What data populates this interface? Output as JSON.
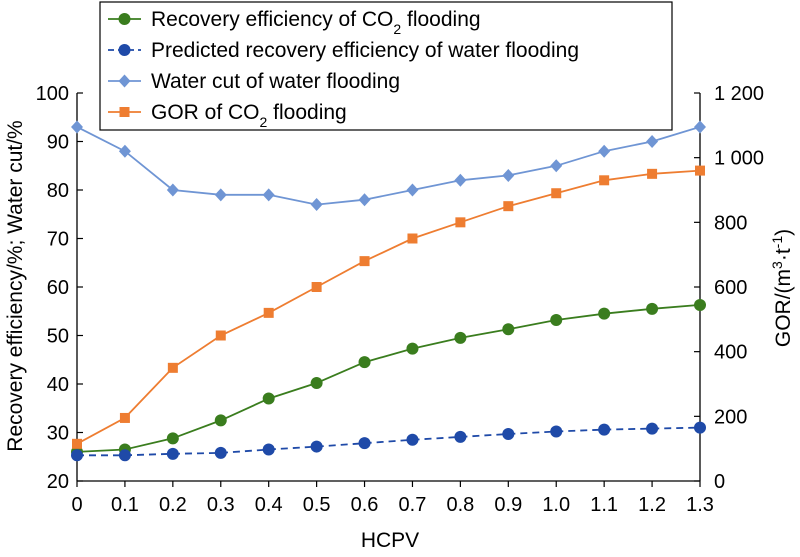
{
  "chart_data": {
    "type": "line",
    "x": [
      0,
      0.1,
      0.2,
      0.3,
      0.4,
      0.5,
      0.6,
      0.7,
      0.8,
      0.9,
      1.0,
      1.1,
      1.2,
      1.3
    ],
    "x_tick_labels": [
      "0",
      "0.1",
      "0.2",
      "0.3",
      "0.4",
      "0.5",
      "0.6",
      "0.7",
      "0.8",
      "0.9",
      "1.0",
      "1.1",
      "1.2",
      "1.3"
    ],
    "xlabel": "HCPV",
    "ylabel_left": "Recovery efficiency/%; Water cut/%",
    "ylabel_right": "GOR/(m3·t-1)",
    "ylim_left": [
      20,
      100
    ],
    "ylim_right": [
      0,
      1200
    ],
    "y_ticks_left": [
      "20",
      "30",
      "40",
      "50",
      "60",
      "70",
      "80",
      "90",
      "100"
    ],
    "y_ticks_right": [
      "0",
      "200",
      "400",
      "600",
      "800",
      "1 000",
      "1 200"
    ],
    "grid": false,
    "legend_position": "top-center",
    "series": [
      {
        "name": "Recovery efficiency of CO2 flooding",
        "axis": "left",
        "color": "#3a7d1e",
        "marker": "circle",
        "dash": "solid",
        "values": [
          26.0,
          26.5,
          28.8,
          32.5,
          37.0,
          40.2,
          44.5,
          47.3,
          49.5,
          51.3,
          53.2,
          54.5,
          55.5,
          56.3
        ]
      },
      {
        "name": "Predicted recovery efficiency of water flooding",
        "axis": "left",
        "color": "#1f4aa8",
        "marker": "circle",
        "dash": "dashed",
        "values": [
          25.3,
          25.3,
          25.6,
          25.8,
          26.5,
          27.1,
          27.8,
          28.5,
          29.1,
          29.7,
          30.2,
          30.6,
          30.8,
          31.0
        ]
      },
      {
        "name": "Water cut of water flooding",
        "axis": "left",
        "color": "#6f95d4",
        "marker": "diamond",
        "dash": "solid",
        "values": [
          93,
          88,
          80,
          79,
          79,
          77,
          78,
          80,
          82,
          83,
          85,
          88,
          90,
          93
        ]
      },
      {
        "name": "GOR of CO2 flooding",
        "axis": "right",
        "color": "#ee7d31",
        "marker": "square",
        "dash": "solid",
        "values": [
          115,
          195,
          350,
          450,
          520,
          600,
          680,
          750,
          800,
          850,
          890,
          930,
          950,
          960
        ]
      }
    ],
    "legend": [
      {
        "prefix": "Recovery efficiency of CO",
        "sub": "2",
        "suffix": " flooding"
      },
      {
        "prefix": "Predicted recovery efficiency of water flooding",
        "sub": "",
        "suffix": ""
      },
      {
        "prefix": "Water cut of water flooding",
        "sub": "",
        "suffix": ""
      },
      {
        "prefix": "GOR of CO",
        "sub": "2",
        "suffix": " flooding"
      }
    ]
  }
}
